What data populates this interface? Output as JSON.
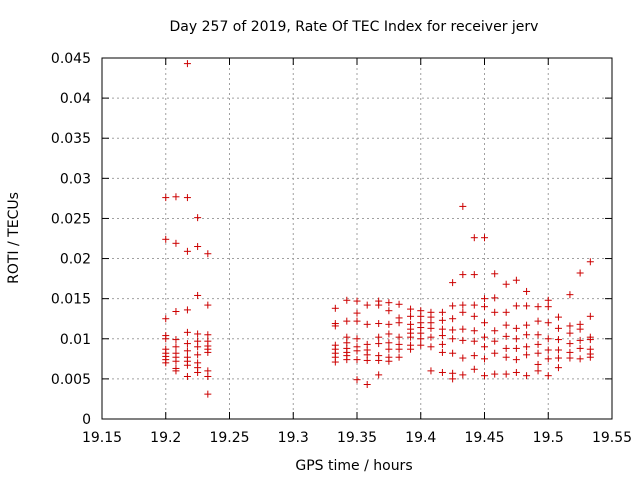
{
  "chart_data": {
    "type": "scatter",
    "title": "Day 257 of 2019, Rate Of TEC Index for receiver jerv",
    "xlabel": "GPS time / hours",
    "ylabel": "ROTI / TECUs",
    "xlim": [
      19.15,
      19.55
    ],
    "ylim": [
      0,
      0.045
    ],
    "xticks": [
      "19.15",
      "19.2",
      "19.25",
      "19.3",
      "19.35",
      "19.4",
      "19.45",
      "19.5",
      "19.55"
    ],
    "xtick_values": [
      19.15,
      19.2,
      19.25,
      19.3,
      19.35,
      19.4,
      19.45,
      19.5,
      19.55
    ],
    "yticks": [
      "0",
      "0.005",
      "0.01",
      "0.015",
      "0.02",
      "0.025",
      "0.03",
      "0.035",
      "0.04",
      "0.045"
    ],
    "ytick_values": [
      0,
      0.005,
      0.01,
      0.015,
      0.02,
      0.025,
      0.03,
      0.035,
      0.04,
      0.045
    ],
    "grid": true,
    "marker": "plus",
    "color": "#cc0000",
    "points": [
      [
        19.2,
        0.0276
      ],
      [
        19.2,
        0.0224
      ],
      [
        19.2,
        0.0125
      ],
      [
        19.2,
        0.0104
      ],
      [
        19.2,
        0.01
      ],
      [
        19.2,
        0.0087
      ],
      [
        19.2,
        0.0082
      ],
      [
        19.2,
        0.0078
      ],
      [
        19.2,
        0.0074
      ],
      [
        19.2,
        0.007
      ],
      [
        19.208,
        0.0277
      ],
      [
        19.208,
        0.0219
      ],
      [
        19.208,
        0.0134
      ],
      [
        19.208,
        0.0099
      ],
      [
        19.208,
        0.009
      ],
      [
        19.208,
        0.0082
      ],
      [
        19.208,
        0.0077
      ],
      [
        19.208,
        0.0072
      ],
      [
        19.208,
        0.0063
      ],
      [
        19.208,
        0.006
      ],
      [
        19.217,
        0.0443
      ],
      [
        19.217,
        0.0276
      ],
      [
        19.217,
        0.0209
      ],
      [
        19.217,
        0.0136
      ],
      [
        19.217,
        0.0108
      ],
      [
        19.217,
        0.0094
      ],
      [
        19.217,
        0.0085
      ],
      [
        19.217,
        0.0077
      ],
      [
        19.217,
        0.0072
      ],
      [
        19.217,
        0.0067
      ],
      [
        19.217,
        0.0053
      ],
      [
        19.225,
        0.0251
      ],
      [
        19.225,
        0.0215
      ],
      [
        19.225,
        0.0154
      ],
      [
        19.225,
        0.0106
      ],
      [
        19.225,
        0.0097
      ],
      [
        19.225,
        0.009
      ],
      [
        19.225,
        0.008
      ],
      [
        19.225,
        0.007
      ],
      [
        19.225,
        0.0064
      ],
      [
        19.225,
        0.0058
      ],
      [
        19.233,
        0.0206
      ],
      [
        19.233,
        0.0142
      ],
      [
        19.233,
        0.0105
      ],
      [
        19.233,
        0.0097
      ],
      [
        19.233,
        0.0091
      ],
      [
        19.233,
        0.0087
      ],
      [
        19.233,
        0.0083
      ],
      [
        19.233,
        0.006
      ],
      [
        19.233,
        0.0053
      ],
      [
        19.233,
        0.0031
      ],
      [
        19.333,
        0.0138
      ],
      [
        19.333,
        0.0119
      ],
      [
        19.333,
        0.0116
      ],
      [
        19.333,
        0.0092
      ],
      [
        19.333,
        0.0087
      ],
      [
        19.333,
        0.0082
      ],
      [
        19.333,
        0.0077
      ],
      [
        19.333,
        0.0071
      ],
      [
        19.342,
        0.0148
      ],
      [
        19.342,
        0.0122
      ],
      [
        19.342,
        0.0102
      ],
      [
        19.342,
        0.0095
      ],
      [
        19.342,
        0.0088
      ],
      [
        19.342,
        0.0083
      ],
      [
        19.342,
        0.0079
      ],
      [
        19.342,
        0.0074
      ],
      [
        19.35,
        0.0147
      ],
      [
        19.35,
        0.0132
      ],
      [
        19.35,
        0.0122
      ],
      [
        19.35,
        0.01
      ],
      [
        19.35,
        0.009
      ],
      [
        19.35,
        0.0085
      ],
      [
        19.35,
        0.0074
      ],
      [
        19.35,
        0.0049
      ],
      [
        19.358,
        0.0142
      ],
      [
        19.358,
        0.0118
      ],
      [
        19.358,
        0.0093
      ],
      [
        19.358,
        0.0086
      ],
      [
        19.358,
        0.008
      ],
      [
        19.358,
        0.0073
      ],
      [
        19.358,
        0.0043
      ],
      [
        19.367,
        0.0147
      ],
      [
        19.367,
        0.0142
      ],
      [
        19.367,
        0.0119
      ],
      [
        19.367,
        0.0102
      ],
      [
        19.367,
        0.0094
      ],
      [
        19.367,
        0.0079
      ],
      [
        19.367,
        0.0073
      ],
      [
        19.367,
        0.0055
      ],
      [
        19.375,
        0.0145
      ],
      [
        19.375,
        0.0135
      ],
      [
        19.375,
        0.0118
      ],
      [
        19.375,
        0.0106
      ],
      [
        19.375,
        0.0095
      ],
      [
        19.375,
        0.0087
      ],
      [
        19.375,
        0.0077
      ],
      [
        19.375,
        0.0072
      ],
      [
        19.383,
        0.0143
      ],
      [
        19.383,
        0.0126
      ],
      [
        19.383,
        0.012
      ],
      [
        19.383,
        0.0102
      ],
      [
        19.383,
        0.0093
      ],
      [
        19.383,
        0.0087
      ],
      [
        19.383,
        0.0077
      ],
      [
        19.392,
        0.0137
      ],
      [
        19.392,
        0.0128
      ],
      [
        19.392,
        0.0118
      ],
      [
        19.392,
        0.0112
      ],
      [
        19.392,
        0.0107
      ],
      [
        19.392,
        0.0102
      ],
      [
        19.392,
        0.0092
      ],
      [
        19.392,
        0.0087
      ],
      [
        19.4,
        0.0135
      ],
      [
        19.4,
        0.0128
      ],
      [
        19.4,
        0.012
      ],
      [
        19.4,
        0.0114
      ],
      [
        19.4,
        0.0107
      ],
      [
        19.4,
        0.01
      ],
      [
        19.4,
        0.0092
      ],
      [
        19.408,
        0.0133
      ],
      [
        19.408,
        0.0127
      ],
      [
        19.408,
        0.012
      ],
      [
        19.408,
        0.0113
      ],
      [
        19.408,
        0.0102
      ],
      [
        19.408,
        0.009
      ],
      [
        19.408,
        0.006
      ],
      [
        19.417,
        0.0133
      ],
      [
        19.417,
        0.0123
      ],
      [
        19.417,
        0.0112
      ],
      [
        19.417,
        0.0104
      ],
      [
        19.417,
        0.0093
      ],
      [
        19.417,
        0.0083
      ],
      [
        19.417,
        0.0058
      ],
      [
        19.425,
        0.017
      ],
      [
        19.425,
        0.0141
      ],
      [
        19.425,
        0.0125
      ],
      [
        19.425,
        0.0111
      ],
      [
        19.425,
        0.01
      ],
      [
        19.425,
        0.0082
      ],
      [
        19.425,
        0.0057
      ],
      [
        19.425,
        0.005
      ],
      [
        19.433,
        0.0265
      ],
      [
        19.433,
        0.018
      ],
      [
        19.433,
        0.0142
      ],
      [
        19.433,
        0.0133
      ],
      [
        19.433,
        0.0112
      ],
      [
        19.433,
        0.0098
      ],
      [
        19.433,
        0.0076
      ],
      [
        19.433,
        0.0055
      ],
      [
        19.442,
        0.0226
      ],
      [
        19.442,
        0.018
      ],
      [
        19.442,
        0.0142
      ],
      [
        19.442,
        0.0128
      ],
      [
        19.442,
        0.011
      ],
      [
        19.442,
        0.0097
      ],
      [
        19.442,
        0.0079
      ],
      [
        19.442,
        0.0062
      ],
      [
        19.45,
        0.0226
      ],
      [
        19.45,
        0.015
      ],
      [
        19.45,
        0.014
      ],
      [
        19.45,
        0.012
      ],
      [
        19.45,
        0.0102
      ],
      [
        19.45,
        0.009
      ],
      [
        19.45,
        0.0075
      ],
      [
        19.45,
        0.0054
      ],
      [
        19.458,
        0.0181
      ],
      [
        19.458,
        0.0151
      ],
      [
        19.458,
        0.0133
      ],
      [
        19.458,
        0.011
      ],
      [
        19.458,
        0.0097
      ],
      [
        19.458,
        0.0082
      ],
      [
        19.458,
        0.0056
      ],
      [
        19.467,
        0.0168
      ],
      [
        19.467,
        0.0133
      ],
      [
        19.467,
        0.0117
      ],
      [
        19.467,
        0.0103
      ],
      [
        19.467,
        0.0088
      ],
      [
        19.467,
        0.0077
      ],
      [
        19.467,
        0.0056
      ],
      [
        19.475,
        0.0173
      ],
      [
        19.475,
        0.0141
      ],
      [
        19.475,
        0.0113
      ],
      [
        19.475,
        0.01
      ],
      [
        19.475,
        0.0088
      ],
      [
        19.475,
        0.0074
      ],
      [
        19.475,
        0.0058
      ],
      [
        19.483,
        0.0159
      ],
      [
        19.483,
        0.0141
      ],
      [
        19.483,
        0.0117
      ],
      [
        19.483,
        0.0105
      ],
      [
        19.483,
        0.009
      ],
      [
        19.483,
        0.008
      ],
      [
        19.483,
        0.0054
      ],
      [
        19.492,
        0.014
      ],
      [
        19.492,
        0.0122
      ],
      [
        19.492,
        0.0105
      ],
      [
        19.492,
        0.0093
      ],
      [
        19.492,
        0.0082
      ],
      [
        19.492,
        0.0068
      ],
      [
        19.492,
        0.006
      ],
      [
        19.5,
        0.0148
      ],
      [
        19.5,
        0.014
      ],
      [
        19.5,
        0.012
      ],
      [
        19.5,
        0.01
      ],
      [
        19.5,
        0.0086
      ],
      [
        19.5,
        0.0075
      ],
      [
        19.5,
        0.0054
      ],
      [
        19.508,
        0.0127
      ],
      [
        19.508,
        0.0113
      ],
      [
        19.508,
        0.0099
      ],
      [
        19.508,
        0.0086
      ],
      [
        19.508,
        0.0076
      ],
      [
        19.508,
        0.0064
      ],
      [
        19.517,
        0.0155
      ],
      [
        19.517,
        0.0116
      ],
      [
        19.517,
        0.0107
      ],
      [
        19.517,
        0.0094
      ],
      [
        19.517,
        0.0083
      ],
      [
        19.517,
        0.0076
      ],
      [
        19.525,
        0.0182
      ],
      [
        19.525,
        0.0118
      ],
      [
        19.525,
        0.0112
      ],
      [
        19.525,
        0.0098
      ],
      [
        19.525,
        0.0088
      ],
      [
        19.525,
        0.0075
      ],
      [
        19.533,
        0.0196
      ],
      [
        19.533,
        0.0128
      ],
      [
        19.533,
        0.0102
      ],
      [
        19.533,
        0.0099
      ],
      [
        19.533,
        0.0087
      ],
      [
        19.533,
        0.0081
      ],
      [
        19.533,
        0.0077
      ]
    ]
  }
}
